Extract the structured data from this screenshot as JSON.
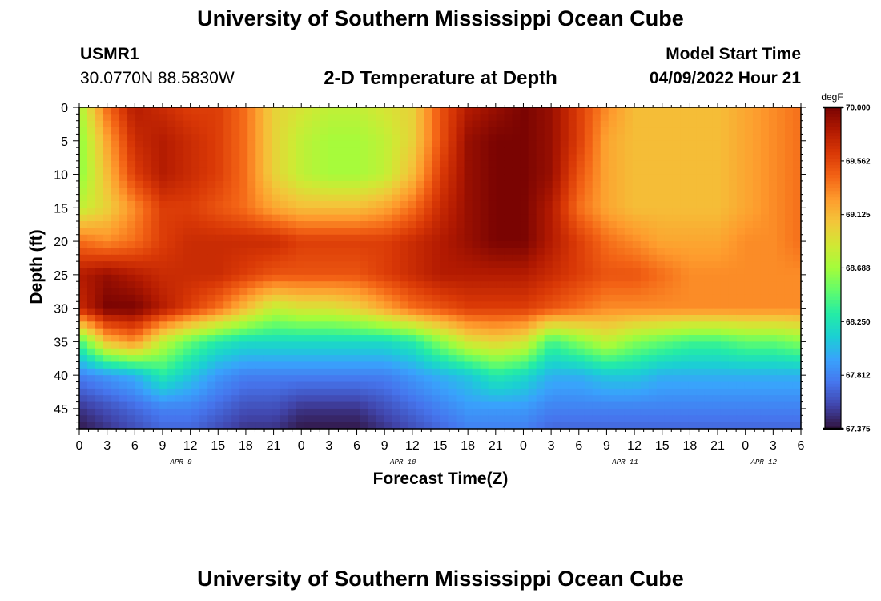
{
  "header": {
    "title": "University of Southern Mississippi Ocean Cube",
    "station_id": "USMR1",
    "station_coords": "30.0770N  88.5830W",
    "plot_title": "2-D Temperature at Depth",
    "model_start_label": "Model Start Time",
    "model_start_value": "04/09/2022 Hour 21"
  },
  "footer": {
    "title": "University of Southern Mississippi Ocean Cube"
  },
  "chart_data": {
    "type": "heatmap",
    "title": "2-D Temperature at Depth",
    "xlabel": "Forecast Time(Z)",
    "ylabel": "Depth (ft)",
    "colorbar_unit": "degF",
    "colorbar_ticks": [
      "70.000",
      "69.562",
      "69.125",
      "68.688",
      "68.250",
      "67.812",
      "67.375"
    ],
    "value_range": [
      67.375,
      70.0
    ],
    "x_ticks": [
      "0",
      "3",
      "6",
      "9",
      "12",
      "15",
      "18",
      "21",
      "0",
      "3",
      "6",
      "9",
      "12",
      "15",
      "18",
      "21",
      "0",
      "3",
      "6",
      "9",
      "12",
      "15",
      "18",
      "21",
      "0",
      "3",
      "6"
    ],
    "x_hours": [
      0,
      3,
      6,
      9,
      12,
      15,
      18,
      21,
      24,
      27,
      30,
      33,
      36,
      39,
      42,
      45,
      48,
      51,
      54,
      57,
      60,
      63,
      66,
      69,
      72,
      75,
      78
    ],
    "x_range_hours": [
      0,
      78
    ],
    "date_labels": [
      {
        "label": "APR 9",
        "hour": 11
      },
      {
        "label": "APR 10",
        "hour": 35
      },
      {
        "label": "APR 11",
        "hour": 59
      },
      {
        "label": "APR 12",
        "hour": 74
      }
    ],
    "y_ticks": [
      0,
      5,
      10,
      15,
      20,
      25,
      30,
      35,
      40,
      45
    ],
    "y_range": [
      0,
      48
    ],
    "sample_hours": [
      0,
      3,
      6,
      9,
      12,
      15,
      18,
      21,
      24,
      27,
      30,
      33,
      36,
      39,
      42,
      45,
      48,
      51,
      54,
      57,
      60,
      63,
      66,
      69,
      72,
      75,
      78
    ],
    "sample_depths": [
      0,
      5,
      10,
      15,
      20,
      25,
      30,
      35,
      40,
      45,
      48
    ],
    "temperature_grid": [
      [
        68.7,
        69.4,
        69.8,
        69.7,
        69.6,
        69.6,
        69.4,
        69.0,
        68.9,
        68.8,
        68.8,
        68.9,
        69.0,
        69.5,
        69.8,
        69.9,
        70.0,
        69.9,
        69.6,
        69.3,
        69.1,
        69.1,
        69.1,
        69.1,
        69.2,
        69.3,
        69.4
      ],
      [
        68.6,
        69.2,
        69.7,
        69.8,
        69.7,
        69.6,
        69.4,
        69.0,
        68.8,
        68.7,
        68.7,
        68.8,
        69.0,
        69.5,
        69.9,
        70.0,
        70.0,
        69.9,
        69.6,
        69.2,
        69.1,
        69.1,
        69.1,
        69.1,
        69.2,
        69.3,
        69.4
      ],
      [
        68.6,
        69.1,
        69.6,
        69.8,
        69.7,
        69.6,
        69.4,
        69.0,
        68.8,
        68.7,
        68.7,
        68.8,
        69.1,
        69.6,
        69.9,
        70.0,
        70.0,
        69.9,
        69.5,
        69.2,
        69.1,
        69.1,
        69.1,
        69.1,
        69.2,
        69.3,
        69.4
      ],
      [
        68.8,
        69.0,
        69.3,
        69.6,
        69.6,
        69.5,
        69.4,
        69.2,
        69.1,
        69.1,
        69.1,
        69.2,
        69.4,
        69.7,
        69.9,
        70.0,
        70.0,
        69.8,
        69.4,
        69.2,
        69.1,
        69.1,
        69.1,
        69.1,
        69.2,
        69.3,
        69.4
      ],
      [
        69.4,
        69.3,
        69.4,
        69.6,
        69.7,
        69.7,
        69.7,
        69.7,
        69.6,
        69.6,
        69.6,
        69.6,
        69.7,
        69.8,
        69.9,
        70.0,
        70.0,
        69.8,
        69.6,
        69.4,
        69.3,
        69.2,
        69.2,
        69.2,
        69.3,
        69.3,
        69.4
      ],
      [
        69.8,
        69.9,
        69.8,
        69.7,
        69.7,
        69.7,
        69.6,
        69.5,
        69.5,
        69.5,
        69.5,
        69.6,
        69.7,
        69.8,
        69.8,
        69.8,
        69.8,
        69.7,
        69.6,
        69.5,
        69.5,
        69.4,
        69.3,
        69.3,
        69.3,
        69.3,
        69.3
      ],
      [
        69.7,
        70.0,
        70.0,
        69.8,
        69.6,
        69.4,
        69.1,
        68.8,
        68.9,
        68.9,
        69.0,
        69.2,
        69.4,
        69.5,
        69.6,
        69.6,
        69.6,
        69.5,
        69.4,
        69.3,
        69.3,
        69.3,
        69.3,
        69.3,
        69.3,
        69.3,
        69.3
      ],
      [
        68.4,
        69.1,
        69.3,
        68.8,
        68.5,
        68.3,
        68.2,
        68.2,
        68.2,
        68.2,
        68.2,
        68.2,
        68.3,
        68.6,
        68.9,
        69.0,
        68.9,
        68.4,
        68.6,
        68.8,
        68.6,
        68.5,
        68.4,
        68.4,
        68.5,
        68.5,
        68.6
      ],
      [
        67.8,
        67.9,
        68.0,
        68.3,
        68.1,
        67.9,
        67.8,
        67.8,
        67.8,
        67.8,
        67.8,
        67.8,
        67.9,
        68.0,
        68.1,
        68.3,
        68.2,
        68.0,
        68.0,
        68.1,
        68.1,
        68.0,
        68.0,
        68.0,
        68.0,
        68.0,
        68.0
      ],
      [
        67.5,
        67.6,
        67.7,
        67.8,
        67.8,
        67.7,
        67.6,
        67.6,
        67.5,
        67.5,
        67.5,
        67.6,
        67.7,
        67.8,
        67.9,
        67.9,
        67.9,
        67.8,
        67.8,
        67.8,
        67.8,
        67.8,
        67.8,
        67.8,
        67.8,
        67.8,
        67.8
      ],
      [
        67.4,
        67.5,
        67.6,
        67.7,
        67.7,
        67.6,
        67.5,
        67.5,
        67.4,
        67.4,
        67.4,
        67.5,
        67.6,
        67.7,
        67.8,
        67.8,
        67.8,
        67.7,
        67.7,
        67.7,
        67.7,
        67.7,
        67.7,
        67.7,
        67.7,
        67.7,
        67.7
      ]
    ],
    "colors": {
      "colormap": [
        "#30123b",
        "#4145ab",
        "#4675ed",
        "#39a2fc",
        "#1bcfd4",
        "#24eca6",
        "#61fc6c",
        "#a4fc3b",
        "#d1e834",
        "#f3c63a",
        "#fe9b2d",
        "#f36315",
        "#d93806",
        "#b11901",
        "#7a0402"
      ],
      "frame": "#000000"
    }
  }
}
